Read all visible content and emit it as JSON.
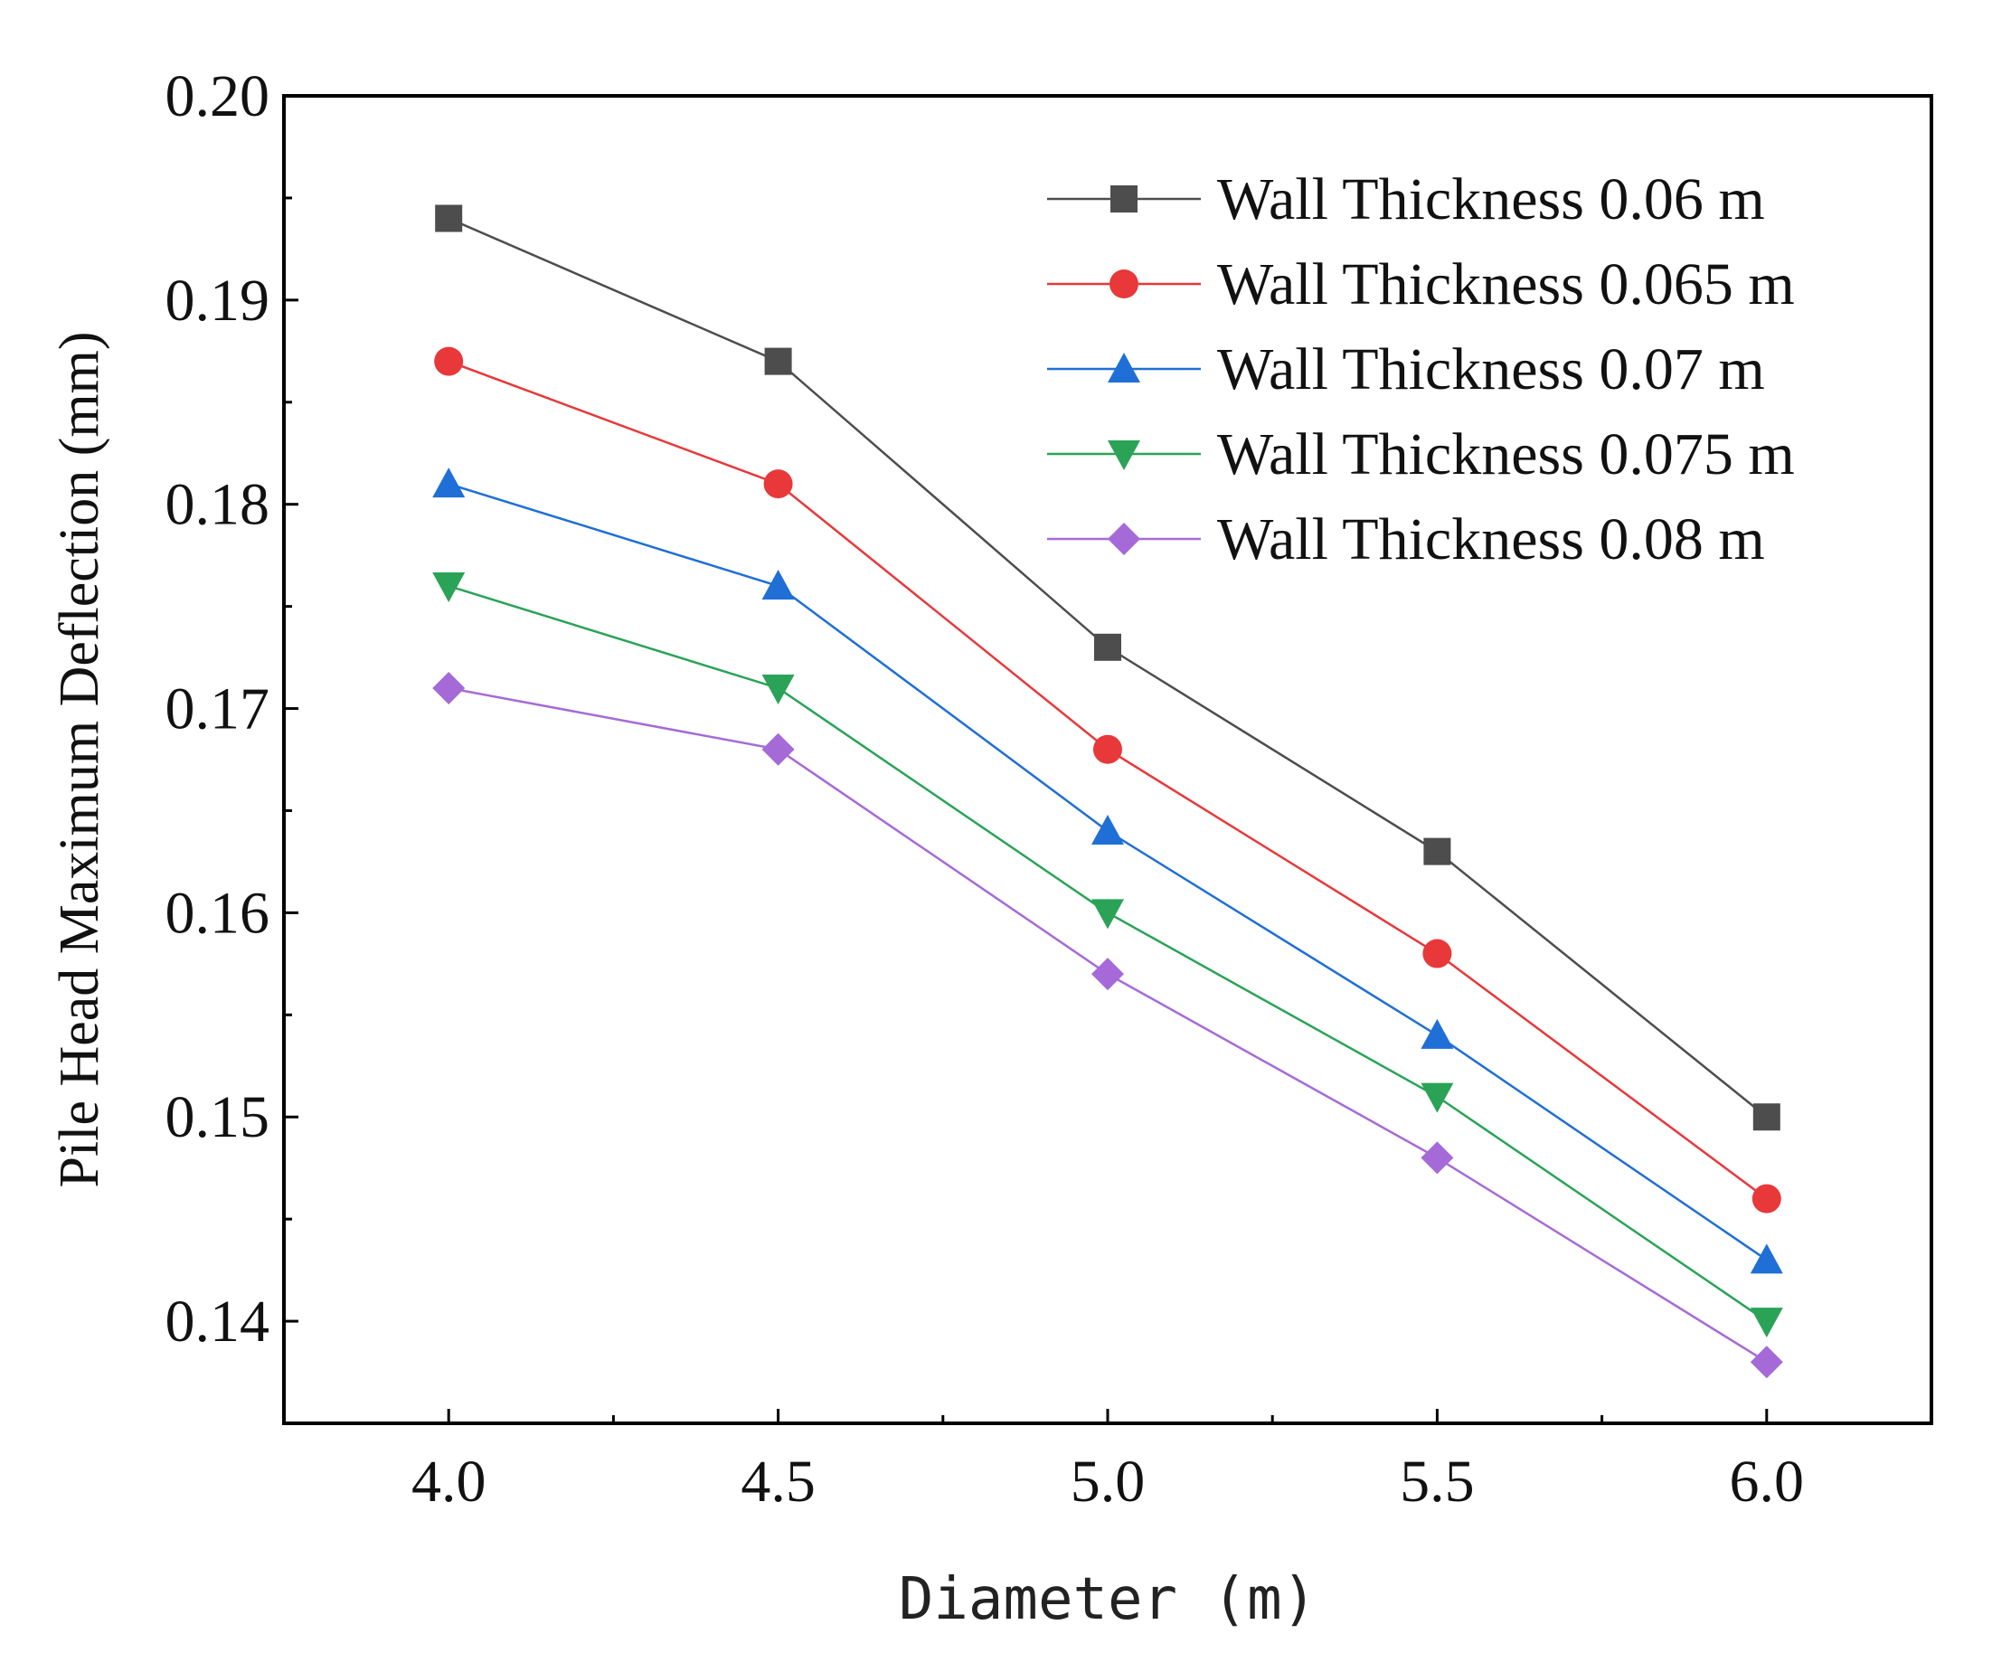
{
  "chart_data": {
    "type": "line",
    "title": "",
    "xlabel": "Diameter (m)",
    "ylabel": "Pile Head Maximum Deflection (mm)",
    "x": [
      4.0,
      4.5,
      5.0,
      5.5,
      6.0
    ],
    "x_tick_labels": [
      "4.0",
      "4.5",
      "5.0",
      "5.5",
      "6.0"
    ],
    "y_tick_labels": [
      "0.14",
      "0.15",
      "0.16",
      "0.17",
      "0.18",
      "0.19",
      "0.20"
    ],
    "xlim": [
      3.75,
      6.25
    ],
    "ylim": [
      0.135,
      0.2
    ],
    "grid": false,
    "legend_position": "top-right",
    "series": [
      {
        "name": "Wall Thickness 0.06 m",
        "marker": "square",
        "color": "#4d4d4d",
        "values": [
          0.194,
          0.187,
          0.173,
          0.163,
          0.15
        ]
      },
      {
        "name": "Wall Thickness 0.065 m",
        "marker": "circle",
        "color": "#e8383a",
        "values": [
          0.187,
          0.181,
          0.168,
          0.158,
          0.146
        ]
      },
      {
        "name": "Wall Thickness 0.07 m",
        "marker": "triangle-up",
        "color": "#1f6fd6",
        "values": [
          0.181,
          0.176,
          0.164,
          0.154,
          0.143
        ]
      },
      {
        "name": "Wall Thickness 0.075 m",
        "marker": "triangle-down",
        "color": "#2aa357",
        "values": [
          0.176,
          0.171,
          0.16,
          0.151,
          0.14
        ]
      },
      {
        "name": "Wall Thickness 0.08 m",
        "marker": "diamond",
        "color": "#a56ad8",
        "values": [
          0.171,
          0.168,
          0.157,
          0.148,
          0.138
        ]
      }
    ]
  }
}
